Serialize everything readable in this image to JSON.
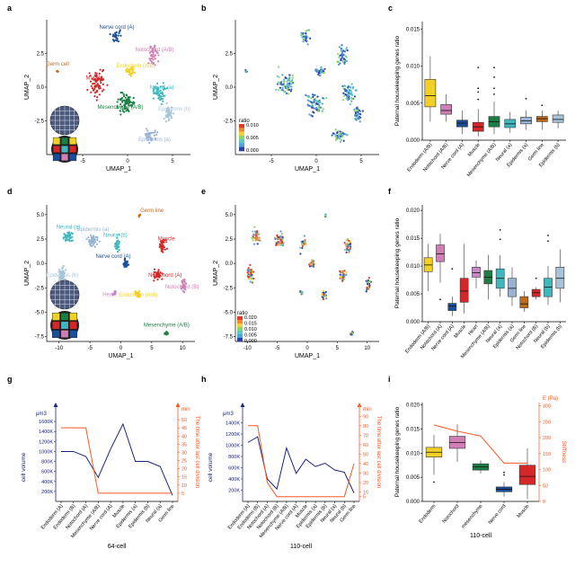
{
  "colors": {
    "blue": "#1a237e",
    "orange": "#ff5722",
    "box_fill_c": [
      "#f2d024",
      "#cf7fb3",
      "#1b4f9c",
      "#d62728",
      "#1b7f45",
      "#3fb7bf",
      "#9ab3d4",
      "#c06a1a",
      "#a8c4d8"
    ],
    "box_fill_f": [
      "#f2d024",
      "#cf7fb3",
      "#1b4f9c",
      "#d62728",
      "#c989c9",
      "#1b7f45",
      "#3fb7bf",
      "#9ab3d4",
      "#c06a1a",
      "#d62728",
      "#3fb7bf",
      "#a8c4d8"
    ],
    "box_fill_i": [
      "#f2d024",
      "#cf7fb3",
      "#1b7f45",
      "#1b4f9c",
      "#d62728"
    ]
  },
  "panels": {
    "a": "a",
    "b": "b",
    "c": "c",
    "d": "d",
    "e": "e",
    "f": "f",
    "g": "g",
    "h": "h",
    "i": "i"
  },
  "chart_data": [
    {
      "panel": "a",
      "type": "scatter",
      "xlabel": "UMAP_1",
      "ylabel": "UMAP_2",
      "xticks": [
        "-5",
        "0",
        "5"
      ],
      "yticks": [
        "2.5",
        "0.0",
        "-2.5"
      ],
      "xlim": [
        -9,
        7
      ],
      "ylim": [
        -5,
        5
      ],
      "clusters": [
        {
          "name": "Nerve cord (A)",
          "color": "#1b4f9c",
          "cx": -1.2,
          "cy": 3.8,
          "sx": 0.6,
          "sy": 0.5,
          "n": 30
        },
        {
          "name": "Notochord (A/B)",
          "color": "#cf7fb3",
          "cx": 3.0,
          "cy": 2.4,
          "sx": 0.7,
          "sy": 0.8,
          "n": 40
        },
        {
          "name": "Endoderm (A/B)",
          "color": "#f2d024",
          "cx": 0.3,
          "cy": 1.2,
          "sx": 0.6,
          "sy": 0.4,
          "n": 30
        },
        {
          "name": "Muscle",
          "color": "#d62728",
          "cx": -3.3,
          "cy": 0.3,
          "sx": 1.0,
          "sy": 1.0,
          "n": 70
        },
        {
          "name": "Neural (a)",
          "color": "#3fb7bf",
          "cx": 3.6,
          "cy": -0.4,
          "sx": 0.9,
          "sy": 0.7,
          "n": 60
        },
        {
          "name": "Mesenchyme (A/B)",
          "color": "#1b7f45",
          "cx": -0.2,
          "cy": -1.2,
          "sx": 1.2,
          "sy": 0.9,
          "n": 70
        },
        {
          "name": "Epidermis (b)",
          "color": "#a8c4d8",
          "cx": 4.6,
          "cy": -2.0,
          "sx": 0.5,
          "sy": 0.6,
          "n": 40
        },
        {
          "name": "Epidermis (a)",
          "color": "#9ab3d4",
          "cx": 2.6,
          "cy": -3.6,
          "sx": 0.8,
          "sy": 0.5,
          "n": 40
        },
        {
          "name": "Germ cell",
          "color": "#c06a1a",
          "cx": -7.8,
          "cy": 1.2,
          "sx": 0.15,
          "sy": 0.15,
          "n": 6
        }
      ]
    },
    {
      "panel": "b",
      "type": "scatter",
      "xlabel": "UMAP_1",
      "ylabel": "UMAP_2",
      "xticks": [
        "-5",
        "0",
        "5"
      ],
      "yticks": [
        "2.5",
        "0.0",
        "-2.5"
      ],
      "xlim": [
        -9,
        7
      ],
      "ylim": [
        -5,
        5
      ],
      "colorbar_title": "ratio",
      "colorbar_ticks": [
        "0.010",
        "0.005",
        "0.000"
      ]
    },
    {
      "panel": "c",
      "type": "box",
      "ylabel": "Paternal housekeeping genes ratio",
      "ylim": [
        0,
        0.016
      ],
      "yticks": [
        0.015,
        0.01,
        0.005,
        0.0
      ],
      "ytick_labels": [
        "0.015",
        "0.010",
        "0.005",
        "0.000"
      ],
      "categories": [
        "Endoderm (A/B)",
        "Notochord (A/B)",
        "Nerve cord (A)",
        "Muscle",
        "Mesenchyme (A/B)",
        "Neural (a)",
        "Epidermis (a)",
        "Germ line",
        "Epidermis (b)"
      ],
      "boxes": [
        {
          "min": 0.0025,
          "q1": 0.0045,
          "med": 0.006,
          "q3": 0.0082,
          "max": 0.0113
        },
        {
          "min": 0.0025,
          "q1": 0.0035,
          "med": 0.004,
          "q3": 0.0048,
          "max": 0.0062
        },
        {
          "min": 0.0008,
          "q1": 0.0018,
          "med": 0.0023,
          "q3": 0.0027,
          "max": 0.004
        },
        {
          "min": 0.0005,
          "q1": 0.0012,
          "med": 0.0018,
          "q3": 0.0024,
          "max": 0.0042
        },
        {
          "min": 0.0008,
          "q1": 0.0018,
          "med": 0.0025,
          "q3": 0.0032,
          "max": 0.0052
        },
        {
          "min": 0.001,
          "q1": 0.0017,
          "med": 0.0022,
          "q3": 0.0028,
          "max": 0.0038
        },
        {
          "min": 0.0014,
          "q1": 0.0022,
          "med": 0.0026,
          "q3": 0.0031,
          "max": 0.004
        },
        {
          "min": 0.0014,
          "q1": 0.0025,
          "med": 0.0029,
          "q3": 0.0032,
          "max": 0.004
        },
        {
          "min": 0.0016,
          "q1": 0.0024,
          "med": 0.0028,
          "q3": 0.0034,
          "max": 0.004
        }
      ],
      "outliers": [
        [
          3,
          0.0055
        ],
        [
          3,
          0.0065
        ],
        [
          3,
          0.007
        ],
        [
          3,
          0.0098
        ],
        [
          4,
          0.0062
        ],
        [
          4,
          0.007
        ],
        [
          4,
          0.0085
        ],
        [
          4,
          0.0098
        ],
        [
          6,
          0.0056
        ],
        [
          7,
          0.0047
        ]
      ]
    },
    {
      "panel": "d",
      "type": "scatter",
      "xlabel": "UMAP_1",
      "ylabel": "UMAP_2",
      "xticks": [
        "-10",
        "-5",
        "0",
        "5",
        "10"
      ],
      "yticks": [
        "5.0",
        "2.5",
        "0.0",
        "-2.5",
        "-5.0",
        "-7.5"
      ],
      "xlim": [
        -12,
        12
      ],
      "ylim": [
        -8,
        6
      ],
      "clusters": [
        {
          "name": "Germ line",
          "color": "#c06a1a",
          "cx": 3.0,
          "cy": 4.9,
          "sx": 0.15,
          "sy": 0.2,
          "n": 6
        },
        {
          "name": "Neural (a)",
          "color": "#3fb7bf",
          "cx": -8.5,
          "cy": 2.8,
          "sx": 0.8,
          "sy": 0.8,
          "n": 40
        },
        {
          "name": "Epidermis (a)",
          "color": "#9ab3d4",
          "cx": -4.5,
          "cy": 2.4,
          "sx": 1.0,
          "sy": 0.8,
          "n": 50
        },
        {
          "name": "Neural (b)",
          "color": "#3fb7bf",
          "cx": -0.6,
          "cy": 2.0,
          "sx": 0.6,
          "sy": 0.8,
          "n": 30
        },
        {
          "name": "Muscle",
          "color": "#d62728",
          "cx": 6.8,
          "cy": 1.8,
          "sx": 0.6,
          "sy": 0.8,
          "n": 40
        },
        {
          "name": "Nerve cord (A)",
          "color": "#1b4f9c",
          "cx": 0.8,
          "cy": 0.0,
          "sx": 0.5,
          "sy": 0.5,
          "n": 30
        },
        {
          "name": "Notochord (A)",
          "color": "#d62728",
          "cx": 6.0,
          "cy": -1.2,
          "sx": 0.8,
          "sy": 0.6,
          "n": 35
        },
        {
          "name": "Epidermis (b)",
          "color": "#a8c4d8",
          "cx": -9.5,
          "cy": -1.2,
          "sx": 0.7,
          "sy": 0.9,
          "n": 50
        },
        {
          "name": "Heart",
          "color": "#c989c9",
          "cx": -1.0,
          "cy": -3.0,
          "sx": 0.3,
          "sy": 0.3,
          "n": 12
        },
        {
          "name": "Endoderm (A/B)",
          "color": "#f2d024",
          "cx": 2.8,
          "cy": -3.2,
          "sx": 0.6,
          "sy": 0.4,
          "n": 25
        },
        {
          "name": "Notochord (B)",
          "color": "#cf7fb3",
          "cx": 10.2,
          "cy": -2.2,
          "sx": 0.4,
          "sy": 0.8,
          "n": 30
        },
        {
          "name": "Mesenchyme (A/B)",
          "color": "#1b7f45",
          "cx": 7.4,
          "cy": -7.2,
          "sx": 0.3,
          "sy": 0.25,
          "n": 12
        }
      ]
    },
    {
      "panel": "e",
      "type": "scatter",
      "xlabel": "UMAP_1",
      "ylabel": "UMAP_2",
      "xticks": [
        "-10",
        "-5",
        "0",
        "5",
        "10"
      ],
      "yticks": [
        "5.0",
        "2.5",
        "0.0",
        "-2.5",
        "-5.0",
        "-7.5"
      ],
      "xlim": [
        -12,
        12
      ],
      "ylim": [
        -8,
        6
      ],
      "colorbar_title": "ratio",
      "colorbar_ticks": [
        "0.020",
        "0.015",
        "0.010",
        "0.005",
        "0.000"
      ]
    },
    {
      "panel": "f",
      "type": "box",
      "ylabel": "Paternal housekeeping genes ratio",
      "ylim": [
        0,
        0.021
      ],
      "yticks": [
        0.02,
        0.015,
        0.01,
        0.005,
        0.0
      ],
      "ytick_labels": [
        "0.020",
        "0.015",
        "0.010",
        "0.005",
        "0.000"
      ],
      "categories": [
        "Endoderm (A/B)",
        "Notochord (A)",
        "Nerve cord (A)",
        "Muscle",
        "Heart",
        "Mesenchyme (A/B)",
        "Neural (a)",
        "Epidermis (a)",
        "Germ line",
        "Notochord (B)",
        "Neural (b)",
        "Epidermis (b)"
      ],
      "boxes": [
        {
          "min": 0.0055,
          "q1": 0.009,
          "med": 0.0102,
          "q3": 0.0115,
          "max": 0.014
        },
        {
          "min": 0.007,
          "q1": 0.0108,
          "med": 0.0122,
          "q3": 0.0138,
          "max": 0.0158
        },
        {
          "min": 0.001,
          "q1": 0.002,
          "med": 0.0028,
          "q3": 0.0033,
          "max": 0.0045
        },
        {
          "min": 0.0015,
          "q1": 0.0035,
          "med": 0.0055,
          "q3": 0.0078,
          "max": 0.014
        },
        {
          "min": 0.006,
          "q1": 0.008,
          "med": 0.0088,
          "q3": 0.0098,
          "max": 0.011
        },
        {
          "min": 0.004,
          "q1": 0.0068,
          "med": 0.008,
          "q3": 0.0092,
          "max": 0.012
        },
        {
          "min": 0.0045,
          "q1": 0.006,
          "med": 0.0078,
          "q3": 0.0095,
          "max": 0.012
        },
        {
          "min": 0.0028,
          "q1": 0.0045,
          "med": 0.006,
          "q3": 0.0078,
          "max": 0.0098
        },
        {
          "min": 0.0018,
          "q1": 0.0025,
          "med": 0.0032,
          "q3": 0.0045,
          "max": 0.0055
        },
        {
          "min": 0.004,
          "q1": 0.0045,
          "med": 0.0052,
          "q3": 0.0058,
          "max": 0.0062
        },
        {
          "min": 0.003,
          "q1": 0.0045,
          "med": 0.0062,
          "q3": 0.0078,
          "max": 0.01
        },
        {
          "min": 0.0035,
          "q1": 0.006,
          "med": 0.0078,
          "q3": 0.0098,
          "max": 0.013
        }
      ],
      "outliers": [
        [
          1,
          0.004
        ],
        [
          2,
          0.0095
        ],
        [
          6,
          0.0148
        ],
        [
          6,
          0.0165
        ],
        [
          9,
          0.0078
        ],
        [
          10,
          0.0145
        ],
        [
          10,
          0.0155
        ]
      ]
    },
    {
      "panel": "g",
      "type": "line",
      "xlabel": "64-cell",
      "ylabel_left": "cell volume",
      "ylabel_right": "The time after last cell division",
      "unit_left": "μm3",
      "unit_right": "min",
      "categories": [
        "Endoderm (A)",
        "Endoderm (B)",
        "Notochord (A)",
        "Mesenchyme (A/B)",
        "Nerve cord (A)",
        "Muscle",
        "Epidermis (a)",
        "Epidermis (b)",
        "Neural (a)",
        "Germ line"
      ],
      "ylim_left": [
        0,
        1800000
      ],
      "yticks_left": [
        200000,
        400000,
        600000,
        800000,
        1000000,
        1200000,
        1400000,
        1600000
      ],
      "ytick_labels_left": [
        "200K",
        "400K",
        "600K",
        "800K",
        "1000K",
        "1200K",
        "1400K",
        "1600K"
      ],
      "ylim_right": [
        0,
        55
      ],
      "yticks_right": [
        5,
        10,
        15,
        20,
        25,
        30,
        35,
        40,
        45,
        50
      ],
      "series": [
        {
          "axis": "left",
          "values": [
            1000000,
            1000000,
            900000,
            480000,
            1050000,
            1550000,
            800000,
            800000,
            700000,
            120000
          ]
        },
        {
          "axis": "right",
          "values": [
            45,
            45,
            45,
            5,
            5,
            5,
            5,
            5,
            5,
            5
          ]
        }
      ]
    },
    {
      "panel": "h",
      "type": "line",
      "xlabel": "110-cell",
      "ylabel_left": "cell volume",
      "ylabel_right": "The time after last cell division",
      "unit_left": "μm3",
      "unit_right": "min",
      "categories": [
        "Endoderm (A)",
        "Endoderm (B)",
        "Notochord (A)",
        "Notochord (B)",
        "Mesenchyme (A/B)",
        "Nerve cord (A)",
        "Muscle",
        "Epidermis (a)",
        "Epidermis (b)",
        "Neural (a)",
        "Neural (b)",
        "Germ line"
      ],
      "ylim_left": [
        0,
        1600000
      ],
      "yticks_left": [
        200000,
        400000,
        600000,
        800000,
        1000000,
        1200000,
        1400000
      ],
      "ytick_labels_left": [
        "200K",
        "400K",
        "600K",
        "800K",
        "1000K",
        "1200K",
        "1400K"
      ],
      "ylim_right": [
        0,
        95
      ],
      "yticks_right": [
        5,
        10,
        20,
        30,
        40,
        50,
        60,
        70,
        80,
        90
      ],
      "series": [
        {
          "axis": "left",
          "values": [
            1050000,
            1150000,
            400000,
            220000,
            950000,
            500000,
            750000,
            620000,
            680000,
            560000,
            520000,
            150000
          ]
        },
        {
          "axis": "right",
          "values": [
            80,
            80,
            20,
            5,
            5,
            5,
            5,
            5,
            5,
            5,
            5,
            40
          ]
        }
      ]
    },
    {
      "panel": "i",
      "type": "box",
      "xlabel": "110-cell",
      "ylabel": "Paternal housekeeping genes ratio",
      "ylabel_right": "Stiffness",
      "unit_right": "E (Pa)",
      "ylim": [
        0,
        0.0205
      ],
      "yticks": [
        0.02,
        0.015,
        0.01,
        0.005,
        0.0
      ],
      "ytick_labels": [
        "0.020",
        "0.015",
        "0.010",
        "0.005",
        "0.000"
      ],
      "yticks_right": [
        0,
        50,
        100,
        150,
        200,
        250,
        300
      ],
      "ylim_right": [
        0,
        310
      ],
      "categories": [
        "Endoderm",
        "Notochord",
        "mesenchyme",
        "Nerve cord",
        "Muscle"
      ],
      "boxes": [
        {
          "min": 0.0055,
          "q1": 0.0092,
          "med": 0.0102,
          "q3": 0.0112,
          "max": 0.0138
        },
        {
          "min": 0.0082,
          "q1": 0.011,
          "med": 0.0122,
          "q3": 0.0135,
          "max": 0.016
        },
        {
          "min": 0.0058,
          "q1": 0.0065,
          "med": 0.0072,
          "q3": 0.0078,
          "max": 0.0085
        },
        {
          "min": 0.001,
          "q1": 0.002,
          "med": 0.0025,
          "q3": 0.003,
          "max": 0.004
        },
        {
          "min": 0.0005,
          "q1": 0.0035,
          "med": 0.0052,
          "q3": 0.0075,
          "max": 0.011
        }
      ],
      "outliers": [
        [
          0,
          0.004
        ],
        [
          3,
          0.0055
        ],
        [
          3,
          0.006
        ]
      ],
      "stiffness": [
        240,
        220,
        205,
        120,
        120
      ]
    }
  ]
}
